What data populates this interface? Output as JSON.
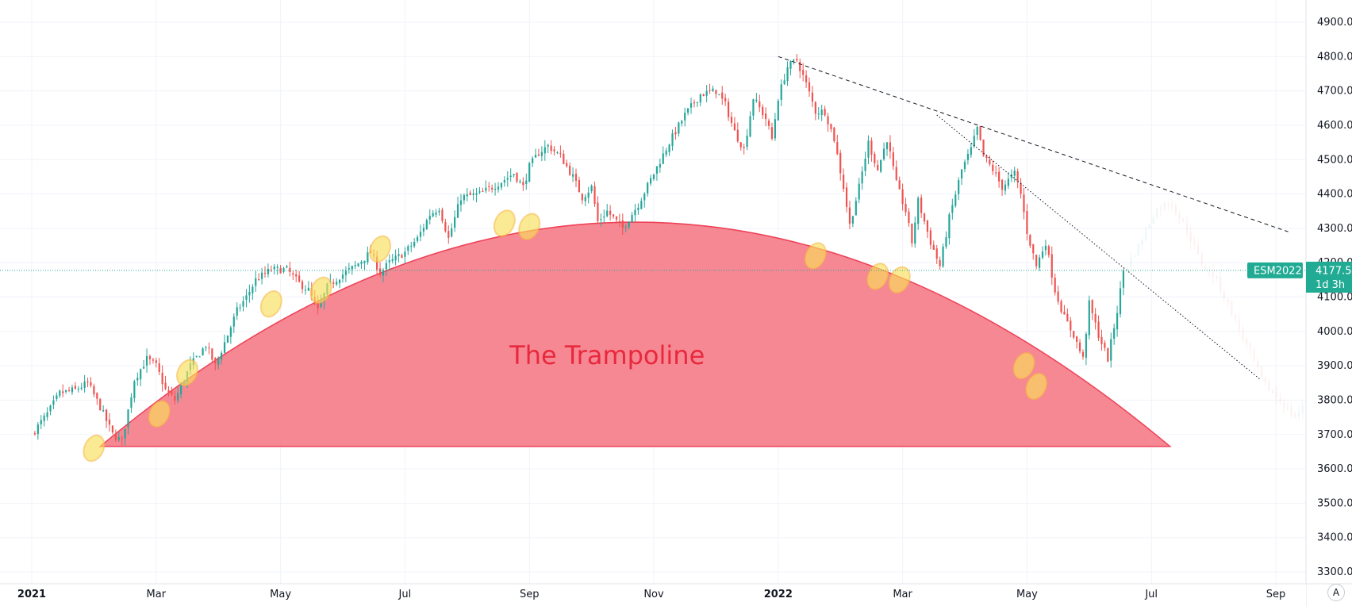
{
  "chart_data": {
    "type": "candlestick",
    "symbol": "ESM2022",
    "last_price": "4177.5",
    "countdown": "1d 3h",
    "annotation": "The Trampoline",
    "y_ticks": [
      "3300.0",
      "3400.0",
      "3500.0",
      "3600.0",
      "3700.0",
      "3800.0",
      "3900.0",
      "4000.0",
      "4100.0",
      "4200.0",
      "4300.0",
      "4400.0",
      "4500.0",
      "4600.0",
      "4700.0",
      "4800.0",
      "4900.0"
    ],
    "ylim": [
      3260,
      4960
    ],
    "x_ticks": [
      {
        "label": "2021",
        "t": 0,
        "bold": true
      },
      {
        "label": "Mar",
        "t": 2,
        "bold": false
      },
      {
        "label": "May",
        "t": 4,
        "bold": false
      },
      {
        "label": "Jul",
        "t": 6,
        "bold": false
      },
      {
        "label": "Sep",
        "t": 8,
        "bold": false
      },
      {
        "label": "Nov",
        "t": 10,
        "bold": false
      },
      {
        "label": "2022",
        "t": 12,
        "bold": true
      },
      {
        "label": "Mar",
        "t": 14,
        "bold": false
      },
      {
        "label": "May",
        "t": 16,
        "bold": false
      },
      {
        "label": "Jul",
        "t": 18,
        "bold": false
      },
      {
        "label": "Sep",
        "t": 20,
        "bold": false
      }
    ],
    "price_path": [
      [
        0.0,
        3700
      ],
      [
        0.25,
        3760
      ],
      [
        0.45,
        3820
      ],
      [
        0.7,
        3830
      ],
      [
        0.9,
        3850
      ],
      [
        1.1,
        3780
      ],
      [
        1.3,
        3700
      ],
      [
        1.45,
        3680
      ],
      [
        1.65,
        3860
      ],
      [
        1.85,
        3920
      ],
      [
        2.0,
        3900
      ],
      [
        2.15,
        3830
      ],
      [
        2.3,
        3800
      ],
      [
        2.55,
        3900
      ],
      [
        2.8,
        3960
      ],
      [
        2.95,
        3900
      ],
      [
        3.15,
        3990
      ],
      [
        3.3,
        4060
      ],
      [
        3.45,
        4100
      ],
      [
        3.6,
        4150
      ],
      [
        3.85,
        4180
      ],
      [
        4.1,
        4180
      ],
      [
        4.3,
        4140
      ],
      [
        4.45,
        4120
      ],
      [
        4.6,
        4060
      ],
      [
        4.75,
        4130
      ],
      [
        4.95,
        4160
      ],
      [
        5.2,
        4190
      ],
      [
        5.45,
        4230
      ],
      [
        5.6,
        4170
      ],
      [
        5.75,
        4200
      ],
      [
        6.0,
        4230
      ],
      [
        6.2,
        4270
      ],
      [
        6.4,
        4340
      ],
      [
        6.55,
        4360
      ],
      [
        6.7,
        4270
      ],
      [
        6.9,
        4390
      ],
      [
        7.2,
        4400
      ],
      [
        7.5,
        4430
      ],
      [
        7.75,
        4460
      ],
      [
        7.9,
        4420
      ],
      [
        8.0,
        4480
      ],
      [
        8.15,
        4520
      ],
      [
        8.3,
        4540
      ],
      [
        8.5,
        4510
      ],
      [
        8.7,
        4450
      ],
      [
        8.85,
        4390
      ],
      [
        9.0,
        4420
      ],
      [
        9.1,
        4320
      ],
      [
        9.25,
        4350
      ],
      [
        9.5,
        4300
      ],
      [
        9.75,
        4370
      ],
      [
        10.0,
        4460
      ],
      [
        10.25,
        4550
      ],
      [
        10.5,
        4630
      ],
      [
        10.75,
        4690
      ],
      [
        11.0,
        4700
      ],
      [
        11.15,
        4660
      ],
      [
        11.3,
        4580
      ],
      [
        11.45,
        4530
      ],
      [
        11.6,
        4680
      ],
      [
        11.8,
        4620
      ],
      [
        11.9,
        4560
      ],
      [
        12.0,
        4680
      ],
      [
        12.15,
        4770
      ],
      [
        12.3,
        4790
      ],
      [
        12.45,
        4720
      ],
      [
        12.6,
        4640
      ],
      [
        12.75,
        4640
      ],
      [
        12.9,
        4560
      ],
      [
        13.05,
        4420
      ],
      [
        13.15,
        4310
      ],
      [
        13.3,
        4420
      ],
      [
        13.45,
        4550
      ],
      [
        13.6,
        4470
      ],
      [
        13.75,
        4560
      ],
      [
        13.9,
        4430
      ],
      [
        14.05,
        4350
      ],
      [
        14.15,
        4260
      ],
      [
        14.25,
        4380
      ],
      [
        14.45,
        4260
      ],
      [
        14.6,
        4190
      ],
      [
        14.75,
        4330
      ],
      [
        14.95,
        4470
      ],
      [
        15.1,
        4530
      ],
      [
        15.2,
        4590
      ],
      [
        15.3,
        4510
      ],
      [
        15.45,
        4470
      ],
      [
        15.6,
        4420
      ],
      [
        15.8,
        4460
      ],
      [
        15.9,
        4400
      ],
      [
        16.0,
        4290
      ],
      [
        16.15,
        4190
      ],
      [
        16.3,
        4260
      ],
      [
        16.45,
        4120
      ],
      [
        16.6,
        4040
      ],
      [
        16.75,
        3990
      ],
      [
        16.9,
        3920
      ],
      [
        17.0,
        4080
      ],
      [
        17.15,
        3990
      ],
      [
        17.3,
        3920
      ],
      [
        17.45,
        4060
      ],
      [
        17.55,
        4177.5
      ]
    ],
    "future_path": [
      [
        17.55,
        4177.5
      ],
      [
        17.8,
        4250
      ],
      [
        18.05,
        4350
      ],
      [
        18.3,
        4380
      ],
      [
        18.55,
        4300
      ],
      [
        18.8,
        4200
      ],
      [
        19.05,
        4150
      ],
      [
        19.3,
        4050
      ],
      [
        19.55,
        3950
      ],
      [
        19.8,
        3850
      ],
      [
        20.05,
        3800
      ],
      [
        20.3,
        3750
      ],
      [
        20.55,
        3800
      ],
      [
        20.8,
        3780
      ],
      [
        21.1,
        3830
      ]
    ],
    "dashed_trendline": [
      [
        12.0,
        4800
      ],
      [
        20.2,
        4290
      ]
    ],
    "dotted_trendline": [
      [
        14.55,
        4630
      ],
      [
        19.75,
        3860
      ]
    ],
    "arc": {
      "t_start": 1.1,
      "t_end": 18.3,
      "base_price": 3665,
      "peak_price": 4318
    },
    "touch_points": [
      [
        1.0,
        3660
      ],
      [
        2.05,
        3760
      ],
      [
        2.5,
        3880
      ],
      [
        3.85,
        4080
      ],
      [
        4.65,
        4120
      ],
      [
        5.6,
        4240
      ],
      [
        7.6,
        4315
      ],
      [
        8.0,
        4305
      ],
      [
        12.6,
        4220
      ],
      [
        13.6,
        4160
      ],
      [
        13.95,
        4150
      ],
      [
        15.95,
        3900
      ],
      [
        16.15,
        3840
      ]
    ],
    "colors": {
      "up": "#26a69a",
      "down": "#ef5350",
      "arc_fill": "#f57b87",
      "arc_stroke": "#ee4257",
      "highlight": "#f9df5a",
      "annotation": "#e8283d",
      "badge": "#22ab94",
      "grid": "#f0f3fa",
      "trend": "#131722"
    }
  },
  "controls": {
    "auto_label": "A"
  }
}
